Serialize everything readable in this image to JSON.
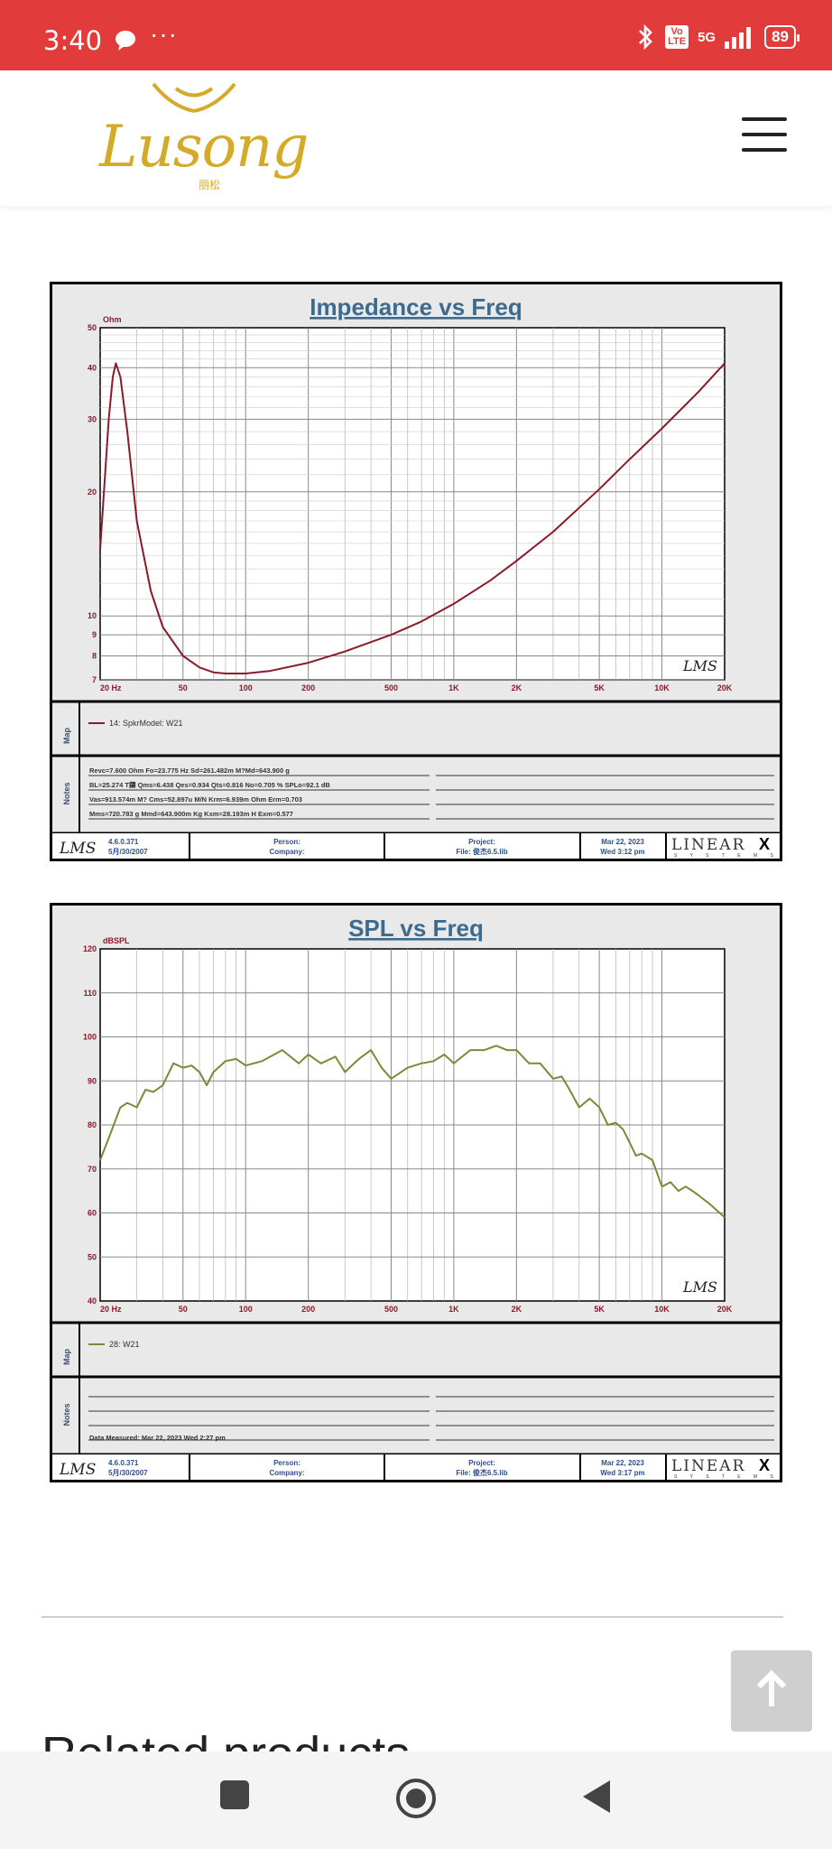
{
  "status_bar": {
    "time": "3:40",
    "network": "5G",
    "volte": "Vo\nLTE",
    "battery": "89"
  },
  "header": {
    "logo_text": "Lusong",
    "logo_subtext": "丽松"
  },
  "charts": [
    {
      "title": "Impedance vs Freq",
      "y_unit": "Ohm",
      "y_ticks": [
        "50",
        "40",
        "30",
        "20",
        "10",
        "9",
        "8",
        "7"
      ],
      "x_ticks": [
        "20  Hz",
        "50",
        "100",
        "200",
        "500",
        "1K",
        "2K",
        "5K",
        "10K",
        "20K"
      ],
      "map_label": "Map",
      "notes_label": "Notes",
      "legend": "14: SpkrModel: W21",
      "line_color": "#8b1a2a",
      "notes": [
        "Revc=7.600 Ohm  Fo=23.775 Hz  Sd=261.482m M?Md=643.900 g",
        "BL=25.274 T鑄  Qms=6.438  Qes=0.934  Qts=0.816  No=0.705 %  SPLo=92.1 dB",
        "Vas=913.574m M? Cms=52.897u M/N  Krm=6.939m Ohm  Erm=0.703",
        "Mms=720.783 g  Mmd=643.900m Kg  Kxm=28.193m H  Exm=0.577"
      ],
      "footer": {
        "version": "4.6.0.371",
        "date": "5月/30/2007",
        "person": "Person:",
        "company": "Company:",
        "project": "Project:",
        "file": "File: 俊杰6.5.lib",
        "measured_date": "Mar 22, 2023",
        "measured_time": "Wed  3:12 pm",
        "brand": "LINEAR",
        "brand_x": "X",
        "brand_sub": "S Y S T E M S",
        "lms": "LMS"
      },
      "chart_data": {
        "type": "line",
        "title": "Impedance vs Freq",
        "xlabel": "Hz",
        "ylabel": "Ohm",
        "x_scale": "log",
        "y_scale": "log",
        "xlim": [
          20,
          20000
        ],
        "ylim": [
          7,
          50
        ],
        "grid": true,
        "series": [
          {
            "name": "14: SpkrModel: W21",
            "x": [
              20,
              22,
              23,
              23.8,
              25,
              27,
              30,
              35,
              40,
              50,
              60,
              70,
              80,
              100,
              130,
              200,
              300,
              500,
              700,
              1000,
              1500,
              2000,
              3000,
              5000,
              7000,
              10000,
              15000,
              20000
            ],
            "y": [
              14.5,
              30,
              38,
              41,
              38,
              28,
              17,
              11.5,
              9.4,
              8,
              7.5,
              7.3,
              7.25,
              7.25,
              7.35,
              7.7,
              8.2,
              9.0,
              9.7,
              10.7,
              12.2,
              13.6,
              16.0,
              20.3,
              24.0,
              28.5,
              35.0,
              41.0
            ]
          }
        ]
      }
    },
    {
      "title": "SPL vs Freq",
      "y_unit": "dBSPL",
      "y_ticks": [
        "120",
        "110",
        "100",
        "90",
        "80",
        "70",
        "60",
        "50",
        "40"
      ],
      "x_ticks": [
        "20  Hz",
        "50",
        "100",
        "200",
        "500",
        "1K",
        "2K",
        "5K",
        "10K",
        "20K"
      ],
      "map_label": "Map",
      "notes_label": "Notes",
      "legend": "28: W21",
      "line_color": "#7a8a3a",
      "notes": [
        "Data Measured: Mar 22, 2023  Wed  2:27 pm"
      ],
      "footer": {
        "version": "4.6.0.371",
        "date": "5月/30/2007",
        "person": "Person:",
        "company": "Company:",
        "project": "Project:",
        "file": "File: 俊杰6.5.lib",
        "measured_date": "Mar 22, 2023",
        "measured_time": "Wed  3:17 pm",
        "brand": "LINEAR",
        "brand_x": "X",
        "brand_sub": "S Y S T E M S",
        "lms": "LMS"
      },
      "chart_data": {
        "type": "line",
        "title": "SPL vs Freq",
        "xlabel": "Hz",
        "ylabel": "dBSPL",
        "x_scale": "log",
        "xlim": [
          20,
          20000
        ],
        "ylim": [
          40,
          120
        ],
        "grid": true,
        "series": [
          {
            "name": "28: W21",
            "x": [
              20,
              22,
              25,
              27,
              30,
              33,
              36,
              40,
              45,
              50,
              55,
              60,
              65,
              70,
              80,
              90,
              100,
              120,
              150,
              180,
              200,
              230,
              270,
              300,
              350,
              400,
              450,
              500,
              600,
              700,
              800,
              900,
              1000,
              1200,
              1400,
              1600,
              1800,
              2000,
              2300,
              2600,
              3000,
              3300,
              3600,
              4000,
              4500,
              5000,
              5500,
              6000,
              6500,
              7000,
              7500,
              8000,
              9000,
              10000,
              11000,
              12000,
              13000,
              14000,
              15000,
              17000,
              20000
            ],
            "y": [
              72,
              77,
              84,
              85,
              84,
              88,
              87.5,
              89,
              94,
              93,
              93.5,
              92,
              89,
              92,
              94.5,
              95,
              93.5,
              94.5,
              97,
              94,
              96,
              94,
              95.5,
              92,
              95,
              97,
              93,
              90.5,
              93,
              94,
              94.5,
              96,
              94,
              97,
              97,
              98,
              97,
              97,
              94,
              94,
              90.5,
              91,
              88,
              84,
              86,
              84,
              80,
              80.5,
              79,
              76,
              73,
              73.5,
              72,
              66,
              67,
              65,
              66,
              65,
              64,
              62,
              59
            ]
          }
        ]
      }
    }
  ],
  "related_heading": "Related products",
  "back_to_top_label": "↑"
}
